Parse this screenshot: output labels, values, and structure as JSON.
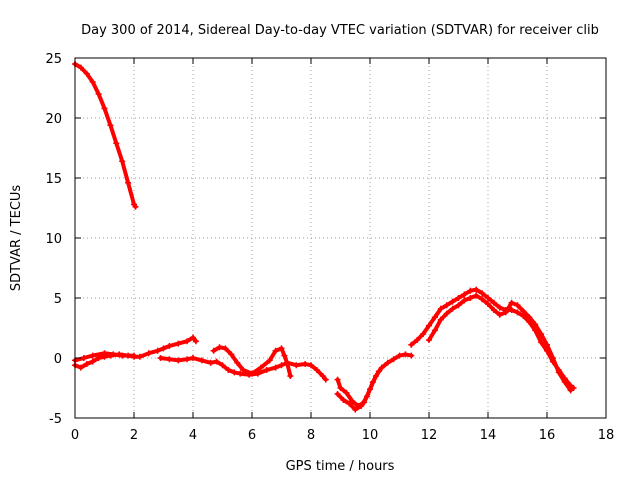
{
  "chart_data": {
    "type": "scatter",
    "title": "Day 300 of 2014, Sidereal Day-to-day VTEC variation (SDTVAR) for receiver clib",
    "xlabel": "GPS time / hours",
    "ylabel": "SDTVAR / TECUs",
    "xlim": [
      0,
      18
    ],
    "ylim": [
      -5,
      25
    ],
    "xticks": [
      0,
      2,
      4,
      6,
      8,
      10,
      12,
      14,
      16,
      18
    ],
    "yticks": [
      -5,
      0,
      5,
      10,
      15,
      20,
      25
    ],
    "grid": true,
    "series": [
      {
        "name": "SDTVAR",
        "color": "#ff0000",
        "segments": [
          [
            [
              0.0,
              24.5
            ],
            [
              0.2,
              24.2
            ],
            [
              0.4,
              23.7
            ],
            [
              0.6,
              23.0
            ],
            [
              0.8,
              22.0
            ],
            [
              1.0,
              20.8
            ],
            [
              1.2,
              19.4
            ],
            [
              1.4,
              17.9
            ],
            [
              1.6,
              16.4
            ],
            [
              1.8,
              14.6
            ],
            [
              2.0,
              12.8
            ],
            [
              2.05,
              12.6
            ]
          ],
          [
            [
              0.0,
              -0.6
            ],
            [
              0.2,
              -0.8
            ],
            [
              0.4,
              -0.5
            ],
            [
              0.6,
              -0.3
            ],
            [
              0.8,
              0.0
            ],
            [
              1.0,
              0.1
            ],
            [
              1.2,
              0.2
            ],
            [
              1.5,
              0.3
            ],
            [
              1.8,
              0.2
            ],
            [
              2.0,
              0.1
            ],
            [
              2.2,
              0.1
            ],
            [
              2.5,
              0.4
            ],
            [
              2.8,
              0.6
            ],
            [
              3.0,
              0.8
            ],
            [
              3.2,
              1.0
            ],
            [
              3.5,
              1.2
            ],
            [
              3.8,
              1.4
            ],
            [
              4.0,
              1.7
            ],
            [
              4.1,
              1.4
            ]
          ],
          [
            [
              0.0,
              -0.2
            ],
            [
              0.3,
              0.0
            ],
            [
              0.6,
              0.2
            ],
            [
              1.0,
              0.4
            ],
            [
              1.3,
              0.3
            ],
            [
              1.6,
              0.2
            ],
            [
              2.0,
              0.2
            ]
          ],
          [
            [
              2.9,
              0.0
            ],
            [
              3.2,
              -0.1
            ],
            [
              3.5,
              -0.2
            ],
            [
              3.8,
              -0.1
            ],
            [
              4.0,
              0.0
            ],
            [
              4.3,
              -0.2
            ],
            [
              4.6,
              -0.4
            ],
            [
              4.8,
              -0.3
            ],
            [
              5.0,
              -0.6
            ],
            [
              5.2,
              -1.0
            ],
            [
              5.4,
              -1.2
            ],
            [
              5.6,
              -1.3
            ],
            [
              5.9,
              -1.4
            ],
            [
              6.2,
              -1.3
            ],
            [
              6.5,
              -1.0
            ],
            [
              6.8,
              -0.8
            ],
            [
              7.0,
              -0.6
            ],
            [
              7.2,
              -0.4
            ],
            [
              7.5,
              -0.6
            ],
            [
              7.8,
              -0.5
            ],
            [
              8.0,
              -0.6
            ],
            [
              8.2,
              -1.0
            ],
            [
              8.4,
              -1.5
            ],
            [
              8.5,
              -1.8
            ]
          ],
          [
            [
              4.7,
              0.6
            ],
            [
              4.9,
              0.9
            ],
            [
              5.1,
              0.8
            ],
            [
              5.3,
              0.3
            ],
            [
              5.5,
              -0.4
            ],
            [
              5.7,
              -1.0
            ],
            [
              6.0,
              -1.3
            ],
            [
              6.3,
              -0.8
            ],
            [
              6.6,
              -0.2
            ],
            [
              6.8,
              0.6
            ],
            [
              7.0,
              0.8
            ],
            [
              7.1,
              0.2
            ],
            [
              7.2,
              -0.5
            ],
            [
              7.3,
              -1.5
            ]
          ],
          [
            [
              8.9,
              -1.8
            ],
            [
              9.0,
              -2.5
            ],
            [
              9.2,
              -2.9
            ],
            [
              9.4,
              -3.6
            ],
            [
              9.6,
              -4.0
            ],
            [
              9.8,
              -3.7
            ],
            [
              10.0,
              -2.6
            ],
            [
              10.2,
              -1.5
            ],
            [
              10.4,
              -0.8
            ],
            [
              10.6,
              -0.4
            ],
            [
              10.8,
              -0.1
            ],
            [
              11.0,
              0.2
            ],
            [
              11.2,
              0.3
            ],
            [
              11.4,
              0.2
            ]
          ],
          [
            [
              8.9,
              -3.0
            ],
            [
              9.1,
              -3.5
            ],
            [
              9.3,
              -3.8
            ],
            [
              9.5,
              -4.3
            ],
            [
              9.7,
              -4.0
            ],
            [
              9.9,
              -3.2
            ],
            [
              10.1,
              -2.0
            ],
            [
              10.3,
              -1.1
            ]
          ],
          [
            [
              11.4,
              1.1
            ],
            [
              11.6,
              1.5
            ],
            [
              11.8,
              2.0
            ],
            [
              12.0,
              2.7
            ],
            [
              12.2,
              3.4
            ],
            [
              12.4,
              4.1
            ],
            [
              12.6,
              4.4
            ],
            [
              12.8,
              4.7
            ],
            [
              13.0,
              5.0
            ],
            [
              13.2,
              5.3
            ],
            [
              13.4,
              5.6
            ],
            [
              13.6,
              5.7
            ],
            [
              13.8,
              5.4
            ],
            [
              14.0,
              5.0
            ],
            [
              14.2,
              4.6
            ],
            [
              14.4,
              4.2
            ],
            [
              14.6,
              4.0
            ],
            [
              14.8,
              4.0
            ],
            [
              15.0,
              3.8
            ],
            [
              15.2,
              3.5
            ],
            [
              15.4,
              3.0
            ],
            [
              15.6,
              2.3
            ],
            [
              15.8,
              1.3
            ],
            [
              16.0,
              0.6
            ],
            [
              16.2,
              -0.3
            ],
            [
              16.4,
              -1.0
            ],
            [
              16.6,
              -1.7
            ],
            [
              16.8,
              -2.3
            ],
            [
              16.9,
              -2.5
            ]
          ],
          [
            [
              12.0,
              1.5
            ],
            [
              12.2,
              2.3
            ],
            [
              12.4,
              3.2
            ],
            [
              12.6,
              3.7
            ],
            [
              12.8,
              4.1
            ],
            [
              13.0,
              4.4
            ],
            [
              13.2,
              4.8
            ],
            [
              13.4,
              5.0
            ],
            [
              13.6,
              5.2
            ],
            [
              13.8,
              4.9
            ],
            [
              14.0,
              4.5
            ],
            [
              14.2,
              4.0
            ],
            [
              14.4,
              3.6
            ],
            [
              14.6,
              3.8
            ],
            [
              14.8,
              4.6
            ],
            [
              15.0,
              4.4
            ],
            [
              15.2,
              3.9
            ],
            [
              15.4,
              3.4
            ],
            [
              15.6,
              2.8
            ],
            [
              15.8,
              2.0
            ],
            [
              16.0,
              1.1
            ],
            [
              16.2,
              0.0
            ],
            [
              16.4,
              -1.2
            ],
            [
              16.6,
              -2.0
            ],
            [
              16.8,
              -2.7
            ]
          ]
        ]
      }
    ]
  }
}
